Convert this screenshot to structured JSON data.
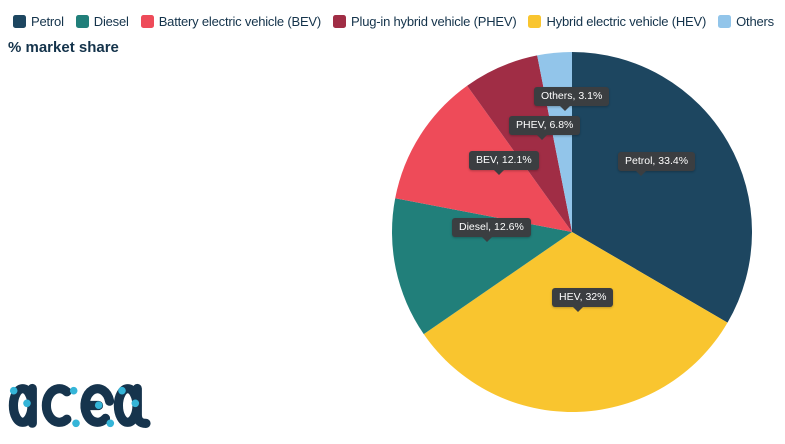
{
  "title": "% market share",
  "legend": {
    "items": [
      {
        "id": "petrol",
        "label": "Petrol",
        "color": "#1d4660"
      },
      {
        "id": "diesel",
        "label": "Diesel",
        "color": "#217f7a"
      },
      {
        "id": "bev",
        "label": "Battery electric vehicle (BEV)",
        "color": "#ee4b59"
      },
      {
        "id": "phev",
        "label": "Plug-in hybrid vehicle (PHEV)",
        "color": "#a02d45"
      },
      {
        "id": "hev",
        "label": "Hybrid electric vehicle (HEV)",
        "color": "#f9c52f"
      },
      {
        "id": "others",
        "label": "Others",
        "color": "#92c5ea"
      }
    ]
  },
  "chart_data": {
    "type": "pie",
    "title": "% market share",
    "unit": "%",
    "start_angle_deg": 0,
    "direction": "clockwise",
    "legend_position": "top",
    "slices": [
      {
        "id": "petrol",
        "label": "Petrol",
        "value": 33.4,
        "color": "#1d4660",
        "data_label": "Petrol, 33.4%"
      },
      {
        "id": "hev",
        "label": "HEV",
        "value": 32,
        "color": "#f9c52f",
        "data_label": "HEV, 32%"
      },
      {
        "id": "diesel",
        "label": "Diesel",
        "value": 12.6,
        "color": "#217f7a",
        "data_label": "Diesel, 12.6%"
      },
      {
        "id": "bev",
        "label": "BEV",
        "value": 12.1,
        "color": "#ee4b59",
        "data_label": "BEV, 12.1%"
      },
      {
        "id": "phev",
        "label": "PHEV",
        "value": 6.8,
        "color": "#a02d45",
        "data_label": "PHEV, 6.8%"
      },
      {
        "id": "others",
        "label": "Others",
        "value": 3.1,
        "color": "#92c5ea",
        "data_label": "Others, 3.1%"
      }
    ]
  },
  "logo": {
    "text": "acea",
    "navy": "#16344d",
    "cyan": "#35b5d8"
  },
  "colors": {
    "text": "#14334b",
    "tooltip_bg": "#3b3e41",
    "tooltip_text": "#ffffff",
    "background": "#ffffff"
  }
}
